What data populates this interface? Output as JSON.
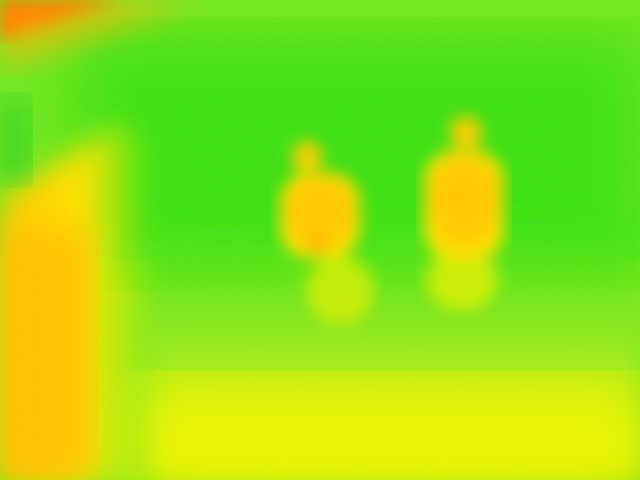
{
  "image": {
    "kind": "thermal-camera-frame",
    "palette": {
      "cold": "#00e000",
      "cool": "#7fe81a",
      "mid": "#d8f000",
      "warm": "#ffee00",
      "hot": "#ffc000",
      "hottest": "#ff5000"
    },
    "subjects": [
      {
        "name": "person-left"
      },
      {
        "name": "person-right"
      }
    ]
  }
}
